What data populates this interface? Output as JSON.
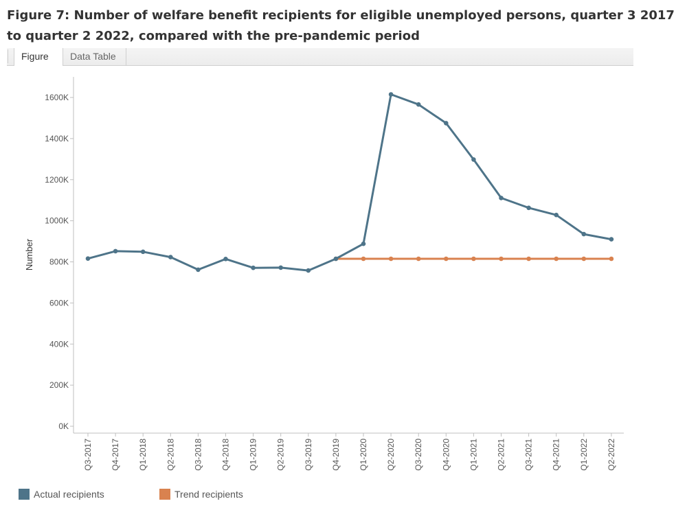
{
  "title": "Figure 7: Number of welfare benefit recipients for eligible unemployed persons, quarter 3 2017 to quarter 2 2022, compared with the pre-pandemic period",
  "tabs": [
    {
      "label": "Figure",
      "active": true
    },
    {
      "label": "Data Table",
      "active": false
    }
  ],
  "chart_data": {
    "type": "line",
    "ylabel": "Number",
    "xlabel": "",
    "ylim": [
      0,
      1700000
    ],
    "yticks": [
      0,
      200000,
      400000,
      600000,
      800000,
      1000000,
      1200000,
      1400000,
      1600000
    ],
    "ytick_labels": [
      "0K",
      "200K",
      "400K",
      "600K",
      "800K",
      "1000K",
      "1200K",
      "1400K",
      "1600K"
    ],
    "categories": [
      "Q3-2017",
      "Q4-2017",
      "Q1-2018",
      "Q2-2018",
      "Q3-2018",
      "Q4-2018",
      "Q1-2019",
      "Q2-2019",
      "Q3-2019",
      "Q4-2019",
      "Q1-2020",
      "Q2-2020",
      "Q3-2020",
      "Q4-2020",
      "Q1-2021",
      "Q2-2021",
      "Q3-2021",
      "Q4-2021",
      "Q1-2022",
      "Q2-2022"
    ],
    "series": [
      {
        "name": "Actual recipients",
        "color": "#4e7489",
        "values": [
          816000,
          852000,
          849000,
          823000,
          762000,
          814000,
          771000,
          772000,
          758000,
          815000,
          888000,
          1615000,
          1566000,
          1475000,
          1298000,
          1111000,
          1063000,
          1028000,
          935000,
          910000
        ]
      },
      {
        "name": "Trend recipients",
        "color": "#d9824f",
        "values": [
          null,
          null,
          null,
          null,
          null,
          null,
          null,
          null,
          null,
          815000,
          815000,
          815000,
          815000,
          815000,
          815000,
          815000,
          815000,
          815000,
          815000,
          815000
        ]
      }
    ],
    "grid": false,
    "legend_position": "bottom-left"
  }
}
